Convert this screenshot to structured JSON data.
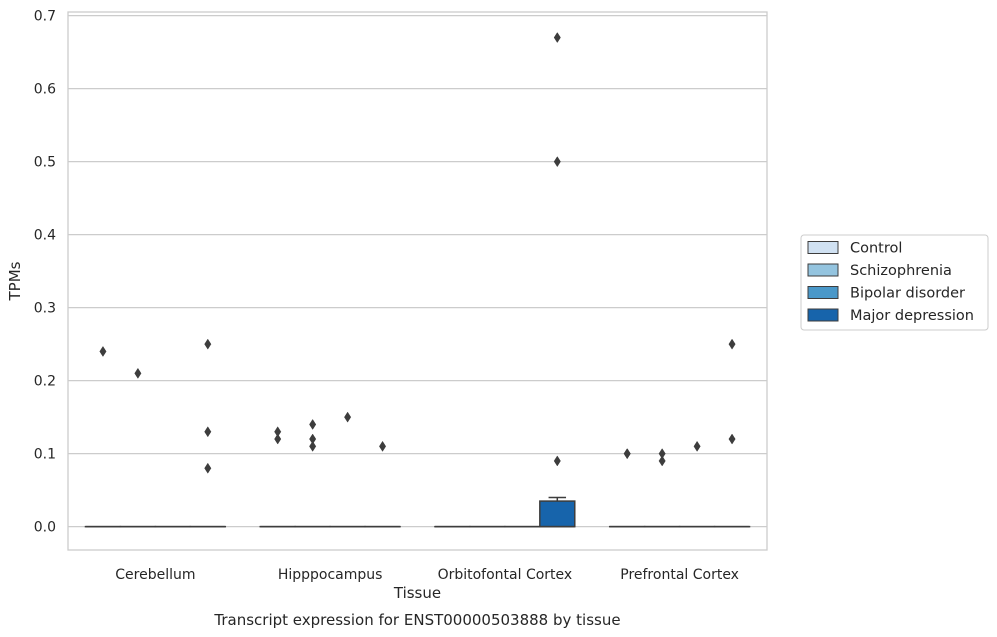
{
  "chart_data": {
    "type": "box",
    "title": "Transcript expression for ENST00000503888 by tissue",
    "xlabel": "Tissue",
    "ylabel": "TPMs",
    "ylim": [
      -0.032,
      0.705
    ],
    "yticks": [
      "0.0",
      "0.1",
      "0.2",
      "0.3",
      "0.4",
      "0.5",
      "0.6",
      "0.7"
    ],
    "grid": "horizontal",
    "legend_position": "right",
    "categories": [
      "Cerebellum",
      "Hipppocampus",
      "Orbitofontal Cortex",
      "Prefrontal Cortex"
    ],
    "series": [
      {
        "name": "Control",
        "color": "#d0e1f2",
        "boxes": [
          {
            "q1": 0,
            "median": 0,
            "q3": 0,
            "whisker_low": 0,
            "whisker_high": 0,
            "outliers": [
              0.24
            ]
          },
          {
            "q1": 0,
            "median": 0,
            "q3": 0,
            "whisker_low": 0,
            "whisker_high": 0,
            "outliers": [
              0.12,
              0.13
            ]
          },
          {
            "q1": 0,
            "median": 0,
            "q3": 0,
            "whisker_low": 0,
            "whisker_high": 0,
            "outliers": []
          },
          {
            "q1": 0,
            "median": 0,
            "q3": 0,
            "whisker_low": 0,
            "whisker_high": 0,
            "outliers": [
              0.1,
              0.1
            ]
          }
        ]
      },
      {
        "name": "Schizophrenia",
        "color": "#94c4df",
        "boxes": [
          {
            "q1": 0,
            "median": 0,
            "q3": 0,
            "whisker_low": 0,
            "whisker_high": 0,
            "outliers": [
              0.21
            ]
          },
          {
            "q1": 0,
            "median": 0,
            "q3": 0,
            "whisker_low": 0,
            "whisker_high": 0,
            "outliers": [
              0.11,
              0.12,
              0.14
            ]
          },
          {
            "q1": 0,
            "median": 0,
            "q3": 0,
            "whisker_low": 0,
            "whisker_high": 0,
            "outliers": []
          },
          {
            "q1": 0,
            "median": 0,
            "q3": 0,
            "whisker_low": 0,
            "whisker_high": 0,
            "outliers": [
              0.09,
              0.1
            ]
          }
        ]
      },
      {
        "name": "Bipolar disorder",
        "color": "#4a98c9",
        "boxes": [
          {
            "q1": 0,
            "median": 0,
            "q3": 0,
            "whisker_low": 0,
            "whisker_high": 0,
            "outliers": []
          },
          {
            "q1": 0,
            "median": 0,
            "q3": 0,
            "whisker_low": 0,
            "whisker_high": 0,
            "outliers": [
              0.15
            ]
          },
          {
            "q1": 0,
            "median": 0,
            "q3": 0,
            "whisker_low": 0,
            "whisker_high": 0,
            "outliers": []
          },
          {
            "q1": 0,
            "median": 0,
            "q3": 0,
            "whisker_low": 0,
            "whisker_high": 0,
            "outliers": [
              0.11
            ]
          }
        ]
      },
      {
        "name": "Major depression",
        "color": "#1764ab",
        "boxes": [
          {
            "q1": 0,
            "median": 0,
            "q3": 0,
            "whisker_low": 0,
            "whisker_high": 0,
            "outliers": [
              0.08,
              0.13,
              0.25
            ]
          },
          {
            "q1": 0,
            "median": 0,
            "q3": 0,
            "whisker_low": 0,
            "whisker_high": 0,
            "outliers": [
              0.11
            ]
          },
          {
            "q1": 0,
            "median": 0,
            "q3": 0.035,
            "whisker_low": 0,
            "whisker_high": 0.04,
            "outliers": [
              0.09,
              0.5,
              0.67
            ]
          },
          {
            "q1": 0,
            "median": 0,
            "q3": 0,
            "whisker_low": 0,
            "whisker_high": 0,
            "outliers": [
              0.12,
              0.25
            ]
          }
        ]
      }
    ]
  }
}
